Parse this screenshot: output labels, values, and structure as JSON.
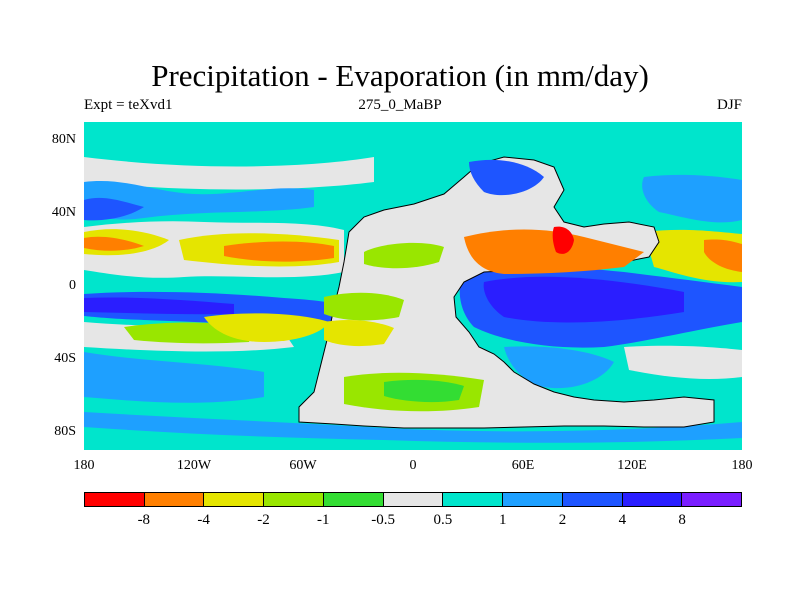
{
  "title": "Precipitation - Evaporation (in mm/day)",
  "subtitle_left": "Expt = teXvd1",
  "subtitle_center": "275_0_MaBP",
  "subtitle_right": "DJF",
  "y_axis_labels": [
    "80N",
    "40N",
    "0",
    "40S",
    "80S"
  ],
  "x_axis_labels": [
    "180",
    "120W",
    "60W",
    "0",
    "60E",
    "120E",
    "180"
  ],
  "colorbar": {
    "colors": [
      "#ff0000",
      "#ff7f00",
      "#e5e500",
      "#99e600",
      "#33dd33",
      "#e6e6e6",
      "#00e5cc",
      "#1ea0ff",
      "#1e55ff",
      "#2a1eff",
      "#7a1eff"
    ],
    "labels": [
      "-8",
      "-4",
      "-2",
      "-1",
      "-0.5",
      "0.5",
      "1",
      "2",
      "4",
      "8"
    ]
  },
  "palette": {
    "land": "#e6e6e6",
    "ocean_base": "#00e5cc"
  }
}
